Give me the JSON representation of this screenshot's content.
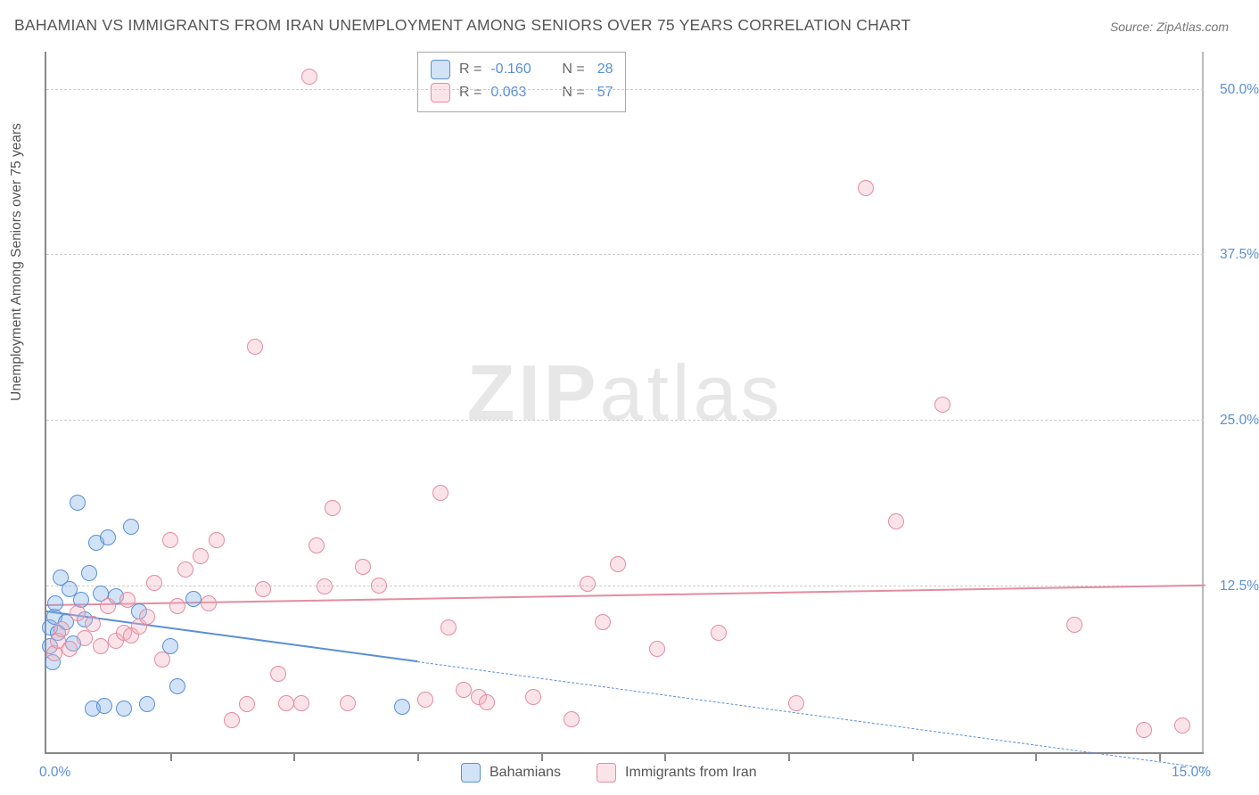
{
  "title": "BAHAMIAN VS IMMIGRANTS FROM IRAN UNEMPLOYMENT AMONG SENIORS OVER 75 YEARS CORRELATION CHART",
  "source": "Source: ZipAtlas.com",
  "ylabel": "Unemployment Among Seniors over 75 years",
  "watermark_a": "ZIP",
  "watermark_b": "atlas",
  "chart": {
    "type": "scatter",
    "xlim": [
      0,
      15
    ],
    "ylim": [
      0,
      53
    ],
    "xtick_minor": [
      1.6,
      3.2,
      4.8,
      6.4,
      8.0,
      9.6,
      11.2,
      12.8,
      14.4
    ],
    "x_origin_label": "0.0%",
    "x_max_label": "15.0%",
    "ytick_values": [
      12.5,
      25.0,
      37.5,
      50.0
    ],
    "ytick_labels": [
      "12.5%",
      "25.0%",
      "37.5%",
      "50.0%"
    ],
    "grid_color": "#cccccc",
    "background_color": "#ffffff",
    "axis_color": "#888888",
    "title_fontsize": 17.5,
    "label_fontsize": 15.5,
    "tick_label_color": "#5a8fd6",
    "marker_radius": 9,
    "series": [
      {
        "name": "Bahamians",
        "key": "a",
        "stroke": "#5a8fd6",
        "fill": "rgba(125,175,232,0.35)",
        "R": "-0.160",
        "N": "28",
        "trend": {
          "y_at_x0": 10.8,
          "y_at_x15": -1.0,
          "solid_until_x": 4.8
        },
        "points": [
          [
            0.05,
            8.0
          ],
          [
            0.05,
            9.4
          ],
          [
            0.08,
            6.8
          ],
          [
            0.1,
            10.2
          ],
          [
            0.12,
            11.2
          ],
          [
            0.15,
            9.0
          ],
          [
            0.18,
            13.2
          ],
          [
            0.25,
            9.8
          ],
          [
            0.3,
            12.3
          ],
          [
            0.35,
            8.2
          ],
          [
            0.4,
            18.8
          ],
          [
            0.45,
            11.5
          ],
          [
            0.5,
            10.0
          ],
          [
            0.55,
            13.5
          ],
          [
            0.6,
            3.3
          ],
          [
            0.65,
            15.8
          ],
          [
            0.7,
            12.0
          ],
          [
            0.75,
            3.5
          ],
          [
            0.8,
            16.2
          ],
          [
            0.9,
            11.8
          ],
          [
            1.0,
            3.3
          ],
          [
            1.1,
            17.0
          ],
          [
            1.2,
            10.6
          ],
          [
            1.3,
            3.6
          ],
          [
            1.6,
            8.0
          ],
          [
            1.7,
            5.0
          ],
          [
            1.9,
            11.6
          ],
          [
            4.6,
            3.4
          ]
        ]
      },
      {
        "name": "Immigrants from Iran",
        "key": "b",
        "stroke": "#e48ca0",
        "fill": "rgba(243,178,193,0.35)",
        "R": "0.063",
        "N": "57",
        "trend": {
          "y_at_x0": 11.3,
          "y_at_x15": 12.8,
          "solid_until_x": 15.0
        },
        "points": [
          [
            0.1,
            7.5
          ],
          [
            0.15,
            8.4
          ],
          [
            0.2,
            9.3
          ],
          [
            0.3,
            7.8
          ],
          [
            0.4,
            10.5
          ],
          [
            0.5,
            8.6
          ],
          [
            0.6,
            9.7
          ],
          [
            0.7,
            8.0
          ],
          [
            0.8,
            11.0
          ],
          [
            0.9,
            8.4
          ],
          [
            1.0,
            9.0
          ],
          [
            1.05,
            11.5
          ],
          [
            1.1,
            8.8
          ],
          [
            1.2,
            9.5
          ],
          [
            1.3,
            10.2
          ],
          [
            1.4,
            12.8
          ],
          [
            1.5,
            7.0
          ],
          [
            1.6,
            16.0
          ],
          [
            1.7,
            11.0
          ],
          [
            1.8,
            13.8
          ],
          [
            2.0,
            14.8
          ],
          [
            2.1,
            11.2
          ],
          [
            2.2,
            16.0
          ],
          [
            2.4,
            2.4
          ],
          [
            2.6,
            3.6
          ],
          [
            2.7,
            30.6
          ],
          [
            2.8,
            12.3
          ],
          [
            3.0,
            5.9
          ],
          [
            3.1,
            3.7
          ],
          [
            3.3,
            3.7
          ],
          [
            3.4,
            51.0
          ],
          [
            3.5,
            15.6
          ],
          [
            3.6,
            12.5
          ],
          [
            3.7,
            18.4
          ],
          [
            3.9,
            3.7
          ],
          [
            4.1,
            14.0
          ],
          [
            4.3,
            12.6
          ],
          [
            4.9,
            4.0
          ],
          [
            5.1,
            19.6
          ],
          [
            5.2,
            9.4
          ],
          [
            5.4,
            4.7
          ],
          [
            5.6,
            4.2
          ],
          [
            5.7,
            3.8
          ],
          [
            6.3,
            4.2
          ],
          [
            6.8,
            2.5
          ],
          [
            7.0,
            12.7
          ],
          [
            7.2,
            9.8
          ],
          [
            7.4,
            14.2
          ],
          [
            7.9,
            7.8
          ],
          [
            8.7,
            9.0
          ],
          [
            9.7,
            3.7
          ],
          [
            10.6,
            42.6
          ],
          [
            11.0,
            17.4
          ],
          [
            11.6,
            26.2
          ],
          [
            13.3,
            9.6
          ],
          [
            14.2,
            1.7
          ],
          [
            14.7,
            2.0
          ]
        ]
      }
    ]
  },
  "legend_bottom": {
    "a_label": "Bahamians",
    "b_label": "Immigrants from Iran"
  }
}
